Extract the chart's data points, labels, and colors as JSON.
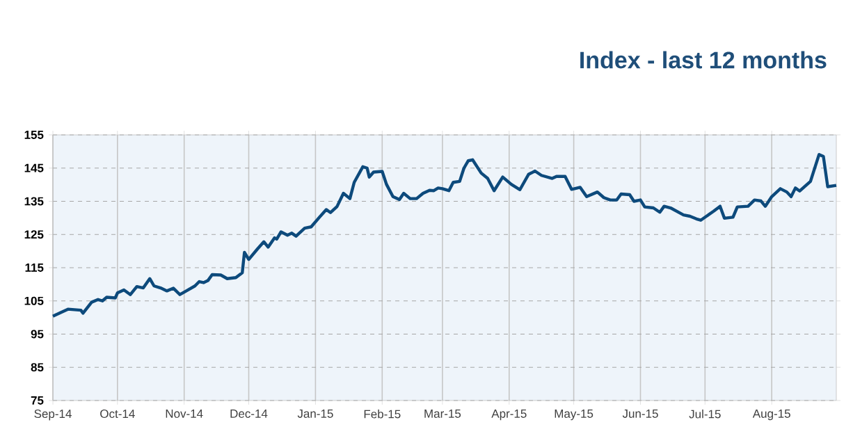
{
  "chart_data": {
    "type": "line",
    "title": "Index - last 12 months",
    "grid": true,
    "marker": "none",
    "line_style": "solid",
    "xlim": [
      "2014-09-01",
      "2015-08-31"
    ],
    "xticks": [
      {
        "value": "2014-09-01",
        "label": "Sep-14"
      },
      {
        "value": "2014-10-01",
        "label": "Oct-14"
      },
      {
        "value": "2014-11-01",
        "label": "Nov-14"
      },
      {
        "value": "2014-12-01",
        "label": "Dec-14"
      },
      {
        "value": "2015-01-01",
        "label": "Jan-15"
      },
      {
        "value": "2015-02-01",
        "label": "Feb-15"
      },
      {
        "value": "2015-03-01",
        "label": "Mar-15"
      },
      {
        "value": "2015-04-01",
        "label": "Apr-15"
      },
      {
        "value": "2015-05-01",
        "label": "May-15"
      },
      {
        "value": "2015-06-01",
        "label": "Jun-15"
      },
      {
        "value": "2015-07-01",
        "label": "Jul-15"
      },
      {
        "value": "2015-08-01",
        "label": "Aug-15"
      }
    ],
    "ylim": [
      75,
      155
    ],
    "yticks": [
      75,
      85,
      95,
      105,
      115,
      125,
      135,
      145,
      155
    ],
    "x": [
      "2014-09-01",
      "2014-09-05",
      "2014-09-08",
      "2014-09-14",
      "2014-09-15",
      "2014-09-19",
      "2014-09-22",
      "2014-09-24",
      "2014-09-26",
      "2014-09-30",
      "2014-10-01",
      "2014-10-04",
      "2014-10-07",
      "2014-10-10",
      "2014-10-13",
      "2014-10-16",
      "2014-10-18",
      "2014-10-21",
      "2014-10-24",
      "2014-10-27",
      "2014-10-30",
      "2014-11-02",
      "2014-11-06",
      "2014-11-08",
      "2014-11-10",
      "2014-11-12",
      "2014-11-14",
      "2014-11-18",
      "2014-11-21",
      "2014-11-25",
      "2014-11-28",
      "2014-11-29",
      "2014-12-01",
      "2014-12-05",
      "2014-12-08",
      "2014-12-10",
      "2014-12-13",
      "2014-12-14",
      "2014-12-16",
      "2014-12-19",
      "2014-12-21",
      "2014-12-23",
      "2014-12-27",
      "2014-12-30",
      "2015-01-03",
      "2015-01-06",
      "2015-01-08",
      "2015-01-11",
      "2015-01-14",
      "2015-01-17",
      "2015-01-19",
      "2015-01-23",
      "2015-01-25",
      "2015-01-26",
      "2015-01-28",
      "2015-02-01",
      "2015-02-03",
      "2015-02-06",
      "2015-02-09",
      "2015-02-11",
      "2015-02-14",
      "2015-02-17",
      "2015-02-20",
      "2015-02-23",
      "2015-02-25",
      "2015-02-27",
      "2015-03-01",
      "2015-03-04",
      "2015-03-06",
      "2015-03-09",
      "2015-03-11",
      "2015-03-13",
      "2015-03-15",
      "2015-03-19",
      "2015-03-22",
      "2015-03-25",
      "2015-03-29",
      "2015-04-02",
      "2015-04-06",
      "2015-04-10",
      "2015-04-13",
      "2015-04-16",
      "2015-04-21",
      "2015-04-23",
      "2015-04-27",
      "2015-04-30",
      "2015-05-04",
      "2015-05-07",
      "2015-05-12",
      "2015-05-15",
      "2015-05-18",
      "2015-05-21",
      "2015-05-23",
      "2015-05-27",
      "2015-05-29",
      "2015-06-01",
      "2015-06-03",
      "2015-06-07",
      "2015-06-10",
      "2015-06-12",
      "2015-06-15",
      "2015-06-21",
      "2015-06-24",
      "2015-06-27",
      "2015-06-29",
      "2015-07-01",
      "2015-07-05",
      "2015-07-08",
      "2015-07-10",
      "2015-07-14",
      "2015-07-16",
      "2015-07-21",
      "2015-07-24",
      "2015-07-27",
      "2015-07-29",
      "2015-08-01",
      "2015-08-05",
      "2015-08-08",
      "2015-08-10",
      "2015-08-12",
      "2015-08-14",
      "2015-08-19",
      "2015-08-23",
      "2015-08-25",
      "2015-08-27",
      "2015-08-31"
    ],
    "series": [
      {
        "color": "#0d4a7c",
        "values": [
          100.4,
          101.6,
          102.5,
          102.2,
          101.3,
          104.6,
          105.4,
          105,
          106.1,
          105.9,
          107.4,
          108.3,
          106.9,
          109.3,
          108.9,
          111.7,
          109.5,
          108.9,
          108,
          108.8,
          106.9,
          108,
          109.5,
          110.8,
          110.5,
          111.1,
          112.9,
          112.8,
          111.7,
          112,
          113.5,
          119.6,
          117.5,
          120.6,
          122.8,
          121.2,
          124,
          123.6,
          125.8,
          124.8,
          125.4,
          124.5,
          126.9,
          127.3,
          130.3,
          132.5,
          131.6,
          133.4,
          137.4,
          135.8,
          140.7,
          145.4,
          145,
          142.3,
          143.8,
          144,
          140.1,
          136.4,
          135.5,
          137.4,
          135.8,
          135.8,
          137.4,
          138.3,
          138.2,
          139,
          138.8,
          138.2,
          140.7,
          141,
          145,
          147.2,
          147.5,
          143.5,
          141.9,
          138.2,
          142.3,
          140.1,
          138.5,
          143.1,
          144.1,
          142.8,
          141.9,
          142.5,
          142.5,
          138.6,
          139.2,
          136.4,
          137.8,
          136.1,
          135.4,
          135.4,
          137.2,
          137,
          135,
          135.4,
          133.3,
          133,
          131.7,
          133.5,
          133,
          130.9,
          130.5,
          129.7,
          129.3,
          130.2,
          132,
          133.5,
          129.9,
          130.2,
          133.3,
          133.5,
          135.4,
          135.1,
          133.5,
          136.4,
          138.8,
          137.8,
          136.4,
          139,
          138.1,
          141,
          149.1,
          148.5,
          139.4,
          139.8
        ]
      }
    ]
  }
}
